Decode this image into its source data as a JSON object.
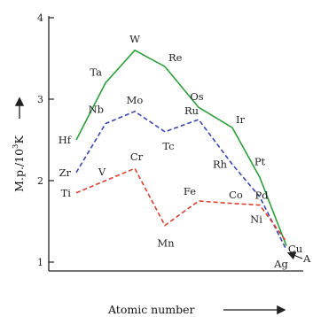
{
  "chart_data": {
    "type": "line",
    "xlabel": "Atomic number",
    "ylabel": "M.p./10³K",
    "ylabel_parts": {
      "main": "M.p./10",
      "sup": "3",
      "unit": "K"
    },
    "yticks": [
      "1",
      "2",
      "3",
      "4"
    ],
    "ylim": [
      1,
      4
    ],
    "grid": false,
    "legend": "none",
    "series": [
      {
        "color": "#2e9e3a",
        "dash": "solid",
        "points": [
          {
            "label": "Hf",
            "value": 2.5
          },
          {
            "label": "Ta",
            "value": 3.2
          },
          {
            "label": "W",
            "value": 3.6
          },
          {
            "label": "Re",
            "value": 3.4
          },
          {
            "label": "Os",
            "value": 2.9
          },
          {
            "label": "Ir",
            "value": 2.65
          },
          {
            "label": "Pt",
            "value": 2.04
          },
          {
            "label": "Au",
            "value": 1.2
          }
        ]
      },
      {
        "color": "#3b46b0",
        "dash": "dashed",
        "points": [
          {
            "label": "Zr",
            "value": 2.1
          },
          {
            "label": "Nb",
            "value": 2.7
          },
          {
            "label": "Mo",
            "value": 2.85
          },
          {
            "label": "Tc",
            "value": 2.6
          },
          {
            "label": "Ru",
            "value": 2.75
          },
          {
            "label": "Rh",
            "value": 2.2
          },
          {
            "label": "Pd",
            "value": 1.8
          },
          {
            "label": "Ag",
            "value": 1.15
          }
        ]
      },
      {
        "color": "#d8412f",
        "dash": "dashed",
        "points": [
          {
            "label": "Ti",
            "value": 1.85
          },
          {
            "label": "V",
            "value": 2.0
          },
          {
            "label": "Cr",
            "value": 2.15
          },
          {
            "label": "Mn",
            "value": 1.45
          },
          {
            "label": "Fe",
            "value": 1.75
          },
          {
            "label": "Co",
            "value": 1.72
          },
          {
            "label": "Ni",
            "value": 1.7
          },
          {
            "label": "Cu",
            "value": 1.25
          }
        ]
      }
    ],
    "arrow_label": "Au",
    "arrow_label_visible": "A"
  }
}
